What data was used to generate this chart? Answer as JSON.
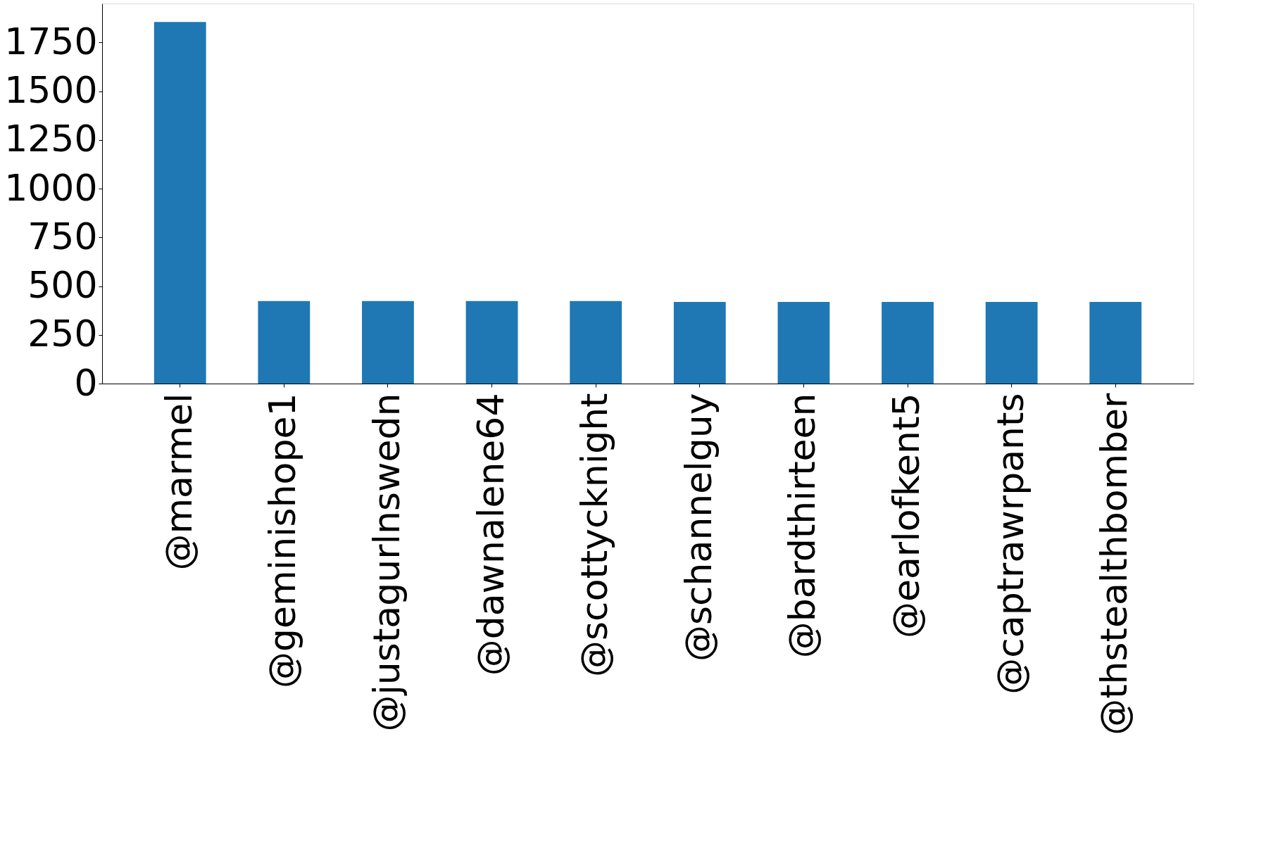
{
  "chart_data": {
    "type": "bar",
    "categories": [
      "@marmel",
      "@geminishope1",
      "@justagurlnswedn",
      "@dawnalene64",
      "@scottycknight",
      "@schannelguy",
      "@bardthirteen",
      "@earlofkent5",
      "@captrawrpants",
      "@thstealthbomber"
    ],
    "values": [
      1855,
      423,
      423,
      423,
      423,
      419,
      419,
      419,
      419,
      419
    ],
    "color": "#1f77b4",
    "ylim": [
      0,
      1950
    ],
    "yticks": [
      0,
      250,
      500,
      750,
      1000,
      1250,
      1500,
      1750
    ],
    "grid": false
  }
}
